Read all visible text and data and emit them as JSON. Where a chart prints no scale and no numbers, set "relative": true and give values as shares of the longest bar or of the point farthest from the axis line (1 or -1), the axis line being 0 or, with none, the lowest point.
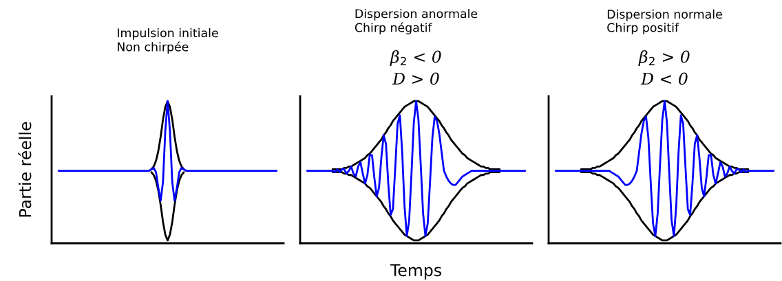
{
  "chart_data": [
    {
      "type": "line",
      "title": "Impulsion initiale\nNon chirpée",
      "ylabel": "Partie réelle",
      "relative": true,
      "categories": [
        null,
        null,
        null,
        null,
        null,
        null,
        null,
        null,
        null,
        null,
        null,
        null,
        null,
        null,
        null,
        null,
        null,
        null,
        null,
        null,
        null,
        null,
        null,
        null,
        null,
        null,
        null,
        null,
        null,
        null,
        null,
        null,
        null,
        null,
        null,
        null,
        null,
        null,
        null,
        null,
        null,
        null,
        null,
        null,
        null,
        null,
        null,
        null,
        null,
        null,
        null,
        null,
        null,
        null,
        null,
        null,
        null,
        null,
        null,
        null,
        null,
        null,
        null,
        null,
        null,
        null,
        null,
        null,
        null,
        null,
        null,
        null,
        null,
        null,
        null,
        null,
        null,
        null,
        null,
        null,
        null,
        null,
        null,
        null,
        null,
        null,
        null,
        null,
        null,
        null,
        null,
        null,
        null,
        null,
        null
      ],
      "series": [
        {
          "color": "#000000",
          "values": [
            null,
            null,
            null,
            null,
            null,
            null,
            null,
            null,
            null,
            null,
            null,
            null,
            null,
            null,
            null,
            null,
            null,
            null,
            null,
            null,
            null,
            null,
            null,
            null,
            null,
            null,
            null,
            null,
            null,
            null,
            null,
            null,
            null,
            null,
            null,
            null,
            null,
            null,
            null,
            null,
            0.52,
            0.54,
            0.58,
            0.65,
            0.75,
            0.87,
            0.96,
            1.0,
            0.96,
            0.87,
            0.75,
            0.65,
            0.58,
            0.54,
            0.52,
            null,
            null,
            null,
            null,
            null,
            null,
            null,
            null,
            null,
            null,
            null,
            null,
            null,
            null,
            null,
            null,
            null,
            null,
            null,
            null,
            null,
            null,
            null,
            null,
            null,
            null,
            null,
            null,
            null,
            null,
            null,
            null,
            null,
            null,
            null,
            null,
            null,
            null,
            null,
            null
          ]
        },
        {
          "color": "#000000",
          "values": [
            null,
            null,
            null,
            null,
            null,
            null,
            null,
            null,
            null,
            null,
            null,
            null,
            null,
            null,
            null,
            null,
            null,
            null,
            null,
            null,
            null,
            null,
            null,
            null,
            null,
            null,
            null,
            null,
            null,
            null,
            null,
            null,
            null,
            null,
            null,
            null,
            null,
            null,
            null,
            null,
            0.5,
            0.48,
            0.44,
            0.37,
            0.27,
            0.15,
            0.06,
            0.02,
            0.06,
            0.15,
            0.27,
            0.37,
            0.44,
            0.48,
            0.5,
            null,
            null,
            null,
            null,
            null,
            null,
            null,
            null,
            null,
            null,
            null,
            null,
            null,
            null,
            null,
            null,
            null,
            null,
            null,
            null,
            null,
            null,
            null,
            null,
            null,
            null,
            null,
            null,
            null,
            null,
            null,
            null,
            null,
            null,
            null,
            null,
            null,
            null,
            null,
            null
          ]
        },
        {
          "color": "#0000ff",
          "values": [
            0.51,
            0.51,
            0.51,
            0.51,
            0.51,
            0.51,
            0.51,
            0.51,
            0.51,
            0.51,
            0.51,
            0.51,
            0.51,
            0.51,
            0.51,
            0.51,
            0.51,
            0.51,
            0.51,
            0.51,
            0.51,
            0.51,
            0.51,
            0.51,
            0.51,
            0.51,
            0.51,
            0.51,
            0.51,
            0.51,
            0.51,
            0.51,
            0.51,
            0.51,
            0.51,
            0.51,
            0.51,
            0.51,
            0.51,
            0.51,
            0.52,
            0.53,
            0.5,
            0.39,
            0.3,
            0.43,
            0.79,
            1.0,
            0.79,
            0.43,
            0.3,
            0.39,
            0.5,
            0.53,
            0.52,
            0.51,
            0.51,
            0.51,
            0.51,
            0.51,
            0.51,
            0.51,
            0.51,
            0.51,
            0.51,
            0.51,
            0.51,
            0.51,
            0.51,
            0.51,
            0.51,
            0.51,
            0.51,
            0.51,
            0.51,
            0.51,
            0.51,
            0.51,
            0.51,
            0.51,
            0.51,
            0.51,
            0.51,
            0.51,
            0.51,
            0.51,
            0.51,
            0.51,
            0.51,
            0.51,
            0.51,
            0.51,
            0.51,
            0.51,
            0.51
          ]
        }
      ]
    },
    {
      "type": "line",
      "title": "Dispersion anormale\nChirp négatif",
      "subtitle": "β$_{2}$ < 0\nD > 0",
      "xlabel": "Temps",
      "relative": true,
      "categories": [
        null,
        null,
        null,
        null,
        null,
        null,
        null,
        null,
        null,
        null,
        null,
        null,
        null,
        null,
        null,
        null,
        null,
        null,
        null,
        null,
        null,
        null,
        null,
        null,
        null,
        null,
        null,
        null,
        null,
        null,
        null,
        null,
        null,
        null,
        null,
        null,
        null,
        null,
        null,
        null,
        null,
        null,
        null,
        null,
        null,
        null,
        null,
        null,
        null,
        null,
        null,
        null,
        null,
        null,
        null,
        null,
        null,
        null,
        null,
        null,
        null,
        null,
        null,
        null,
        null,
        null,
        null,
        null,
        null,
        null,
        null,
        null,
        null,
        null,
        null,
        null,
        null,
        null,
        null,
        null,
        null,
        null,
        null,
        null,
        null,
        null,
        null,
        null,
        null,
        null,
        null,
        null,
        null,
        null,
        null
      ],
      "series": [
        {
          "color": "#000000",
          "values": [
            null,
            null,
            null,
            null,
            null,
            null,
            null,
            null,
            null,
            null,
            null,
            0.52,
            0.52,
            0.52,
            0.52,
            0.52,
            0.53,
            0.53,
            0.54,
            0.54,
            0.55,
            0.56,
            0.57,
            0.58,
            0.59,
            0.6,
            0.62,
            0.63,
            0.65,
            0.67,
            0.69,
            0.71,
            0.73,
            0.76,
            0.78,
            0.81,
            0.83,
            0.86,
            0.88,
            0.9,
            0.92,
            0.94,
            0.96,
            0.97,
            0.98,
            0.99,
            1.0,
            1.0,
            1.0,
            0.99,
            0.98,
            0.97,
            0.96,
            0.94,
            0.92,
            0.9,
            0.88,
            0.86,
            0.83,
            0.81,
            0.78,
            0.76,
            0.73,
            0.71,
            0.69,
            0.67,
            0.65,
            0.63,
            0.62,
            0.6,
            0.59,
            0.58,
            0.57,
            0.56,
            0.55,
            0.54,
            0.54,
            0.53,
            0.53,
            0.52,
            0.52,
            0.52,
            0.52,
            0.52,
            null,
            null,
            null,
            null,
            null,
            null,
            null,
            null,
            null,
            null,
            null
          ]
        },
        {
          "color": "#000000",
          "values": [
            null,
            null,
            null,
            null,
            null,
            null,
            null,
            null,
            null,
            null,
            null,
            0.5,
            0.5,
            0.5,
            0.5,
            0.5,
            0.49,
            0.49,
            0.48,
            0.48,
            0.47,
            0.46,
            0.45,
            0.44,
            0.43,
            0.42,
            0.4,
            0.39,
            0.37,
            0.35,
            0.33,
            0.31,
            0.29,
            0.26,
            0.24,
            0.21,
            0.19,
            0.16,
            0.14,
            0.12,
            0.1,
            0.08,
            0.06,
            0.05,
            0.04,
            0.03,
            0.02,
            0.02,
            0.02,
            0.03,
            0.04,
            0.05,
            0.06,
            0.08,
            0.1,
            0.12,
            0.14,
            0.16,
            0.19,
            0.21,
            0.24,
            0.26,
            0.29,
            0.31,
            0.33,
            0.35,
            0.37,
            0.39,
            0.4,
            0.42,
            0.43,
            0.44,
            0.45,
            0.46,
            0.47,
            0.48,
            0.48,
            0.49,
            0.49,
            0.5,
            0.5,
            0.5,
            0.5,
            0.5,
            null,
            null,
            null,
            null,
            null,
            null,
            null,
            null,
            null,
            null,
            null
          ]
        },
        {
          "color": "#0000ff",
          "values": [
            0.51,
            0.51,
            0.51,
            0.51,
            0.51,
            0.51,
            0.51,
            0.51,
            0.51,
            0.51,
            0.51,
            0.51,
            0.5,
            0.52,
            0.5,
            0.52,
            0.52,
            0.49,
            0.51,
            0.54,
            0.49,
            0.47,
            0.54,
            0.57,
            0.49,
            0.42,
            0.48,
            0.62,
            0.62,
            0.46,
            0.33,
            0.39,
            0.6,
            0.76,
            0.7,
            0.42,
            0.2,
            0.24,
            0.53,
            0.84,
            0.9,
            0.64,
            0.26,
            0.05,
            0.16,
            0.49,
            0.85,
            1.0,
            0.87,
            0.55,
            0.21,
            0.05,
            0.14,
            0.43,
            0.74,
            0.89,
            0.86,
            0.77,
            0.64,
            0.51,
            0.47,
            0.44,
            0.42,
            0.41,
            0.41,
            0.43,
            0.45,
            0.47,
            0.48,
            0.49,
            0.5,
            0.51,
            0.51,
            0.51,
            0.51,
            0.51,
            0.51,
            0.51,
            0.51,
            0.51,
            0.51,
            0.51,
            0.51,
            0.51,
            0.51,
            0.51,
            0.51,
            0.51,
            0.51,
            0.51,
            0.51,
            0.51,
            0.51,
            0.51,
            0.51
          ]
        }
      ]
    },
    {
      "type": "line",
      "title": "Dispersion normale\nChirp positif",
      "subtitle": "β$_{2}$ > 0\nD < 0",
      "relative": true,
      "categories": [
        null,
        null,
        null,
        null,
        null,
        null,
        null,
        null,
        null,
        null,
        null,
        null,
        null,
        null,
        null,
        null,
        null,
        null,
        null,
        null,
        null,
        null,
        null,
        null,
        null,
        null,
        null,
        null,
        null,
        null,
        null,
        null,
        null,
        null,
        null,
        null,
        null,
        null,
        null,
        null,
        null,
        null,
        null,
        null,
        null,
        null,
        null,
        null,
        null,
        null,
        null,
        null,
        null,
        null,
        null,
        null,
        null,
        null,
        null,
        null,
        null,
        null,
        null,
        null,
        null,
        null,
        null,
        null,
        null,
        null,
        null,
        null,
        null,
        null,
        null,
        null,
        null,
        null,
        null,
        null,
        null,
        null,
        null,
        null,
        null,
        null,
        null,
        null,
        null,
        null,
        null,
        null,
        null,
        null,
        null
      ],
      "series": [
        {
          "color": "#000000",
          "values": [
            null,
            null,
            null,
            null,
            null,
            null,
            null,
            null,
            null,
            null,
            null,
            0.52,
            0.52,
            0.52,
            0.52,
            0.52,
            0.53,
            0.53,
            0.54,
            0.54,
            0.55,
            0.56,
            0.57,
            0.58,
            0.59,
            0.6,
            0.62,
            0.63,
            0.65,
            0.67,
            0.69,
            0.71,
            0.73,
            0.76,
            0.78,
            0.81,
            0.83,
            0.86,
            0.88,
            0.9,
            0.92,
            0.94,
            0.96,
            0.97,
            0.98,
            0.99,
            1.0,
            1.0,
            1.0,
            0.99,
            0.98,
            0.97,
            0.96,
            0.94,
            0.92,
            0.9,
            0.88,
            0.86,
            0.83,
            0.81,
            0.78,
            0.76,
            0.73,
            0.71,
            0.69,
            0.67,
            0.65,
            0.63,
            0.62,
            0.6,
            0.59,
            0.58,
            0.57,
            0.56,
            0.55,
            0.54,
            0.54,
            0.53,
            0.53,
            0.52,
            0.52,
            0.52,
            0.52,
            0.52,
            null,
            null,
            null,
            null,
            null,
            null,
            null,
            null,
            null,
            null,
            null
          ]
        },
        {
          "color": "#000000",
          "values": [
            null,
            null,
            null,
            null,
            null,
            null,
            null,
            null,
            null,
            null,
            null,
            0.5,
            0.5,
            0.5,
            0.5,
            0.5,
            0.49,
            0.49,
            0.48,
            0.48,
            0.47,
            0.46,
            0.45,
            0.44,
            0.43,
            0.42,
            0.4,
            0.39,
            0.37,
            0.35,
            0.33,
            0.31,
            0.29,
            0.26,
            0.24,
            0.21,
            0.19,
            0.16,
            0.14,
            0.12,
            0.1,
            0.08,
            0.06,
            0.05,
            0.04,
            0.03,
            0.02,
            0.02,
            0.02,
            0.03,
            0.04,
            0.05,
            0.06,
            0.08,
            0.1,
            0.12,
            0.14,
            0.16,
            0.19,
            0.21,
            0.24,
            0.26,
            0.29,
            0.31,
            0.33,
            0.35,
            0.37,
            0.39,
            0.4,
            0.42,
            0.43,
            0.44,
            0.45,
            0.46,
            0.47,
            0.48,
            0.48,
            0.49,
            0.49,
            0.5,
            0.5,
            0.5,
            0.5,
            0.5,
            null,
            null,
            null,
            null,
            null,
            null,
            null,
            null,
            null,
            null,
            null
          ]
        },
        {
          "color": "#0000ff",
          "values": [
            0.51,
            0.51,
            0.51,
            0.51,
            0.51,
            0.51,
            0.51,
            0.51,
            0.51,
            0.51,
            0.51,
            0.51,
            0.51,
            0.51,
            0.51,
            0.51,
            0.51,
            0.51,
            0.51,
            0.51,
            0.51,
            0.51,
            0.51,
            0.51,
            0.5,
            0.49,
            0.48,
            0.47,
            0.45,
            0.43,
            0.41,
            0.41,
            0.42,
            0.44,
            0.47,
            0.51,
            0.64,
            0.77,
            0.86,
            0.89,
            0.74,
            0.43,
            0.14,
            0.05,
            0.21,
            0.55,
            0.87,
            1.0,
            0.85,
            0.49,
            0.16,
            0.05,
            0.26,
            0.64,
            0.9,
            0.84,
            0.53,
            0.24,
            0.2,
            0.42,
            0.7,
            0.76,
            0.6,
            0.39,
            0.33,
            0.46,
            0.62,
            0.62,
            0.48,
            0.42,
            0.49,
            0.57,
            0.54,
            0.47,
            0.49,
            0.54,
            0.51,
            0.49,
            0.52,
            0.52,
            0.5,
            0.52,
            0.5,
            0.51,
            0.51,
            0.51,
            0.51,
            0.51,
            0.51,
            0.51,
            0.51,
            0.51,
            0.51,
            0.51,
            0.51
          ]
        }
      ]
    }
  ]
}
